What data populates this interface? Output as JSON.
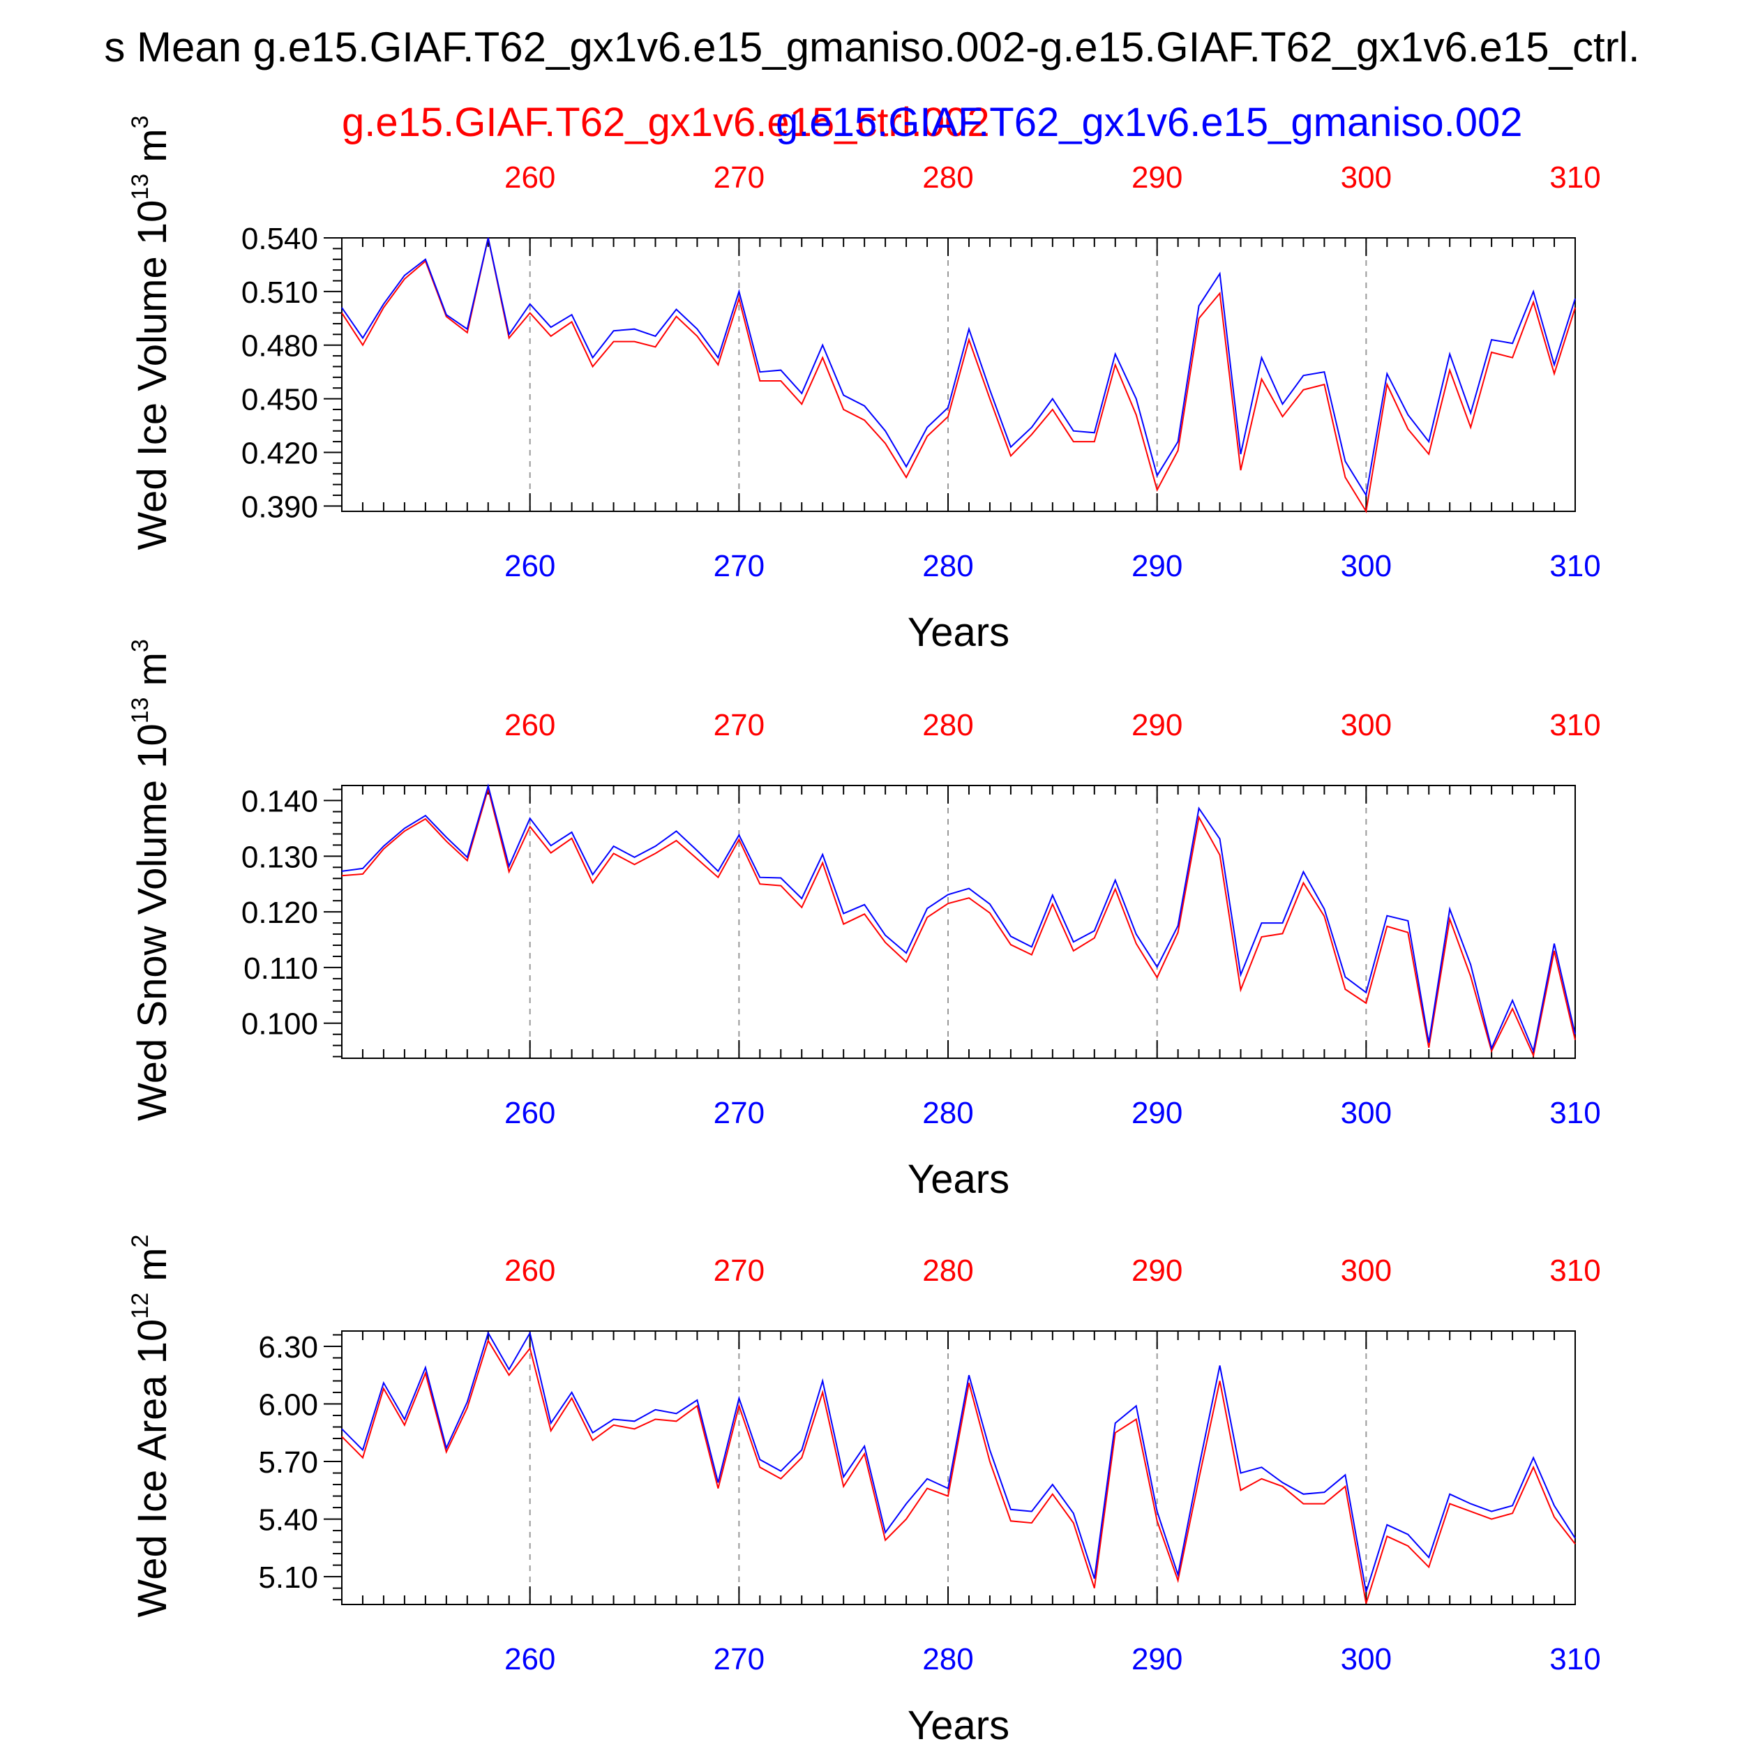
{
  "title": "s Mean g.e15.GIAF.T62_gx1v6.e15_gmaniso.002-g.e15.GIAF.T62_gx1v6.e15_ctrl.",
  "legend": {
    "red_label": "g.e15.GIAF.T62_gx1v6.e15_ctrl.002",
    "blue_label": "g.e15.GIAF.T62_gx1v6.e15_gmaniso.002",
    "red_color": "#ff0000",
    "blue_color": "#0000ff"
  },
  "chart_data": [
    {
      "type": "line",
      "ylabel": "Wed Ice Volume 10",
      "ylabel_sup": "13",
      "ylabel_unit": " m",
      "ylabel_unit_sup": "3",
      "xlabel": "Years",
      "xlim": [
        251,
        310
      ],
      "ylim": [
        0.387,
        0.54
      ],
      "yticks": [
        "0.390",
        "0.420",
        "0.450",
        "0.480",
        "0.510",
        "0.540"
      ],
      "xticks_top": [
        "260",
        "270",
        "280",
        "290",
        "300",
        "310"
      ],
      "xticks_bottom": [
        "260",
        "270",
        "280",
        "290",
        "300",
        "310"
      ],
      "grid_x": [
        260,
        270,
        280,
        290,
        300
      ],
      "x": [
        251,
        252,
        253,
        254,
        255,
        256,
        257,
        258,
        259,
        260,
        261,
        262,
        263,
        264,
        265,
        266,
        267,
        268,
        269,
        270,
        271,
        272,
        273,
        274,
        275,
        276,
        277,
        278,
        279,
        280,
        281,
        282,
        283,
        284,
        285,
        286,
        287,
        288,
        289,
        290,
        291,
        292,
        293,
        294,
        295,
        296,
        297,
        298,
        299,
        300,
        301,
        302,
        303,
        304,
        305,
        306,
        307,
        308,
        309,
        310
      ],
      "series": [
        {
          "name": "g.e15.GIAF.T62_gx1v6.e15_ctrl.002",
          "color": "#ff0000",
          "values": [
            0.498,
            0.48,
            0.501,
            0.517,
            0.527,
            0.496,
            0.487,
            0.54,
            0.484,
            0.498,
            0.485,
            0.493,
            0.468,
            0.482,
            0.482,
            0.479,
            0.496,
            0.485,
            0.469,
            0.506,
            0.46,
            0.46,
            0.447,
            0.473,
            0.444,
            0.438,
            0.425,
            0.406,
            0.429,
            0.44,
            0.483,
            0.45,
            0.418,
            0.43,
            0.444,
            0.426,
            0.426,
            0.469,
            0.441,
            0.399,
            0.421,
            0.495,
            0.509,
            0.41,
            0.461,
            0.44,
            0.455,
            0.458,
            0.406,
            0.387,
            0.458,
            0.433,
            0.419,
            0.466,
            0.434,
            0.476,
            0.473,
            0.504,
            0.464,
            0.501
          ]
        },
        {
          "name": "g.e15.GIAF.T62_gx1v6.e15_gmaniso.002",
          "color": "#0000ff",
          "values": [
            0.501,
            0.484,
            0.503,
            0.519,
            0.528,
            0.497,
            0.489,
            0.54,
            0.486,
            0.503,
            0.49,
            0.497,
            0.473,
            0.488,
            0.489,
            0.485,
            0.5,
            0.489,
            0.473,
            0.51,
            0.465,
            0.466,
            0.453,
            0.48,
            0.452,
            0.446,
            0.432,
            0.412,
            0.434,
            0.445,
            0.489,
            0.455,
            0.423,
            0.434,
            0.45,
            0.432,
            0.431,
            0.475,
            0.45,
            0.407,
            0.426,
            0.502,
            0.52,
            0.419,
            0.473,
            0.447,
            0.463,
            0.465,
            0.415,
            0.396,
            0.464,
            0.441,
            0.426,
            0.475,
            0.442,
            0.483,
            0.481,
            0.51,
            0.469,
            0.506
          ]
        }
      ]
    },
    {
      "type": "line",
      "ylabel": "Wed Snow Volume 10",
      "ylabel_sup": "13",
      "ylabel_unit": " m",
      "ylabel_unit_sup": "3",
      "xlabel": "Years",
      "xlim": [
        251,
        310
      ],
      "ylim": [
        0.0937,
        0.1427
      ],
      "yticks": [
        "0.100",
        "0.110",
        "0.120",
        "0.130",
        "0.140"
      ],
      "xticks_top": [
        "260",
        "270",
        "280",
        "290",
        "300",
        "310"
      ],
      "xticks_bottom": [
        "260",
        "270",
        "280",
        "290",
        "300",
        "310"
      ],
      "grid_x": [
        260,
        270,
        280,
        290,
        300
      ],
      "x": [
        251,
        252,
        253,
        254,
        255,
        256,
        257,
        258,
        259,
        260,
        261,
        262,
        263,
        264,
        265,
        266,
        267,
        268,
        269,
        270,
        271,
        272,
        273,
        274,
        275,
        276,
        277,
        278,
        279,
        280,
        281,
        282,
        283,
        284,
        285,
        286,
        287,
        288,
        289,
        290,
        291,
        292,
        293,
        294,
        295,
        296,
        297,
        298,
        299,
        300,
        301,
        302,
        303,
        304,
        305,
        306,
        307,
        308,
        309,
        310
      ],
      "series": [
        {
          "name": "g.e15.GIAF.T62_gx1v6.e15_ctrl.002",
          "color": "#ff0000",
          "values": [
            0.1265,
            0.1268,
            0.1313,
            0.1345,
            0.1367,
            0.1327,
            0.1292,
            0.1421,
            0.1272,
            0.1353,
            0.1306,
            0.1332,
            0.1252,
            0.1305,
            0.1285,
            0.1305,
            0.1328,
            0.1295,
            0.1262,
            0.133,
            0.125,
            0.1247,
            0.1208,
            0.1288,
            0.1178,
            0.1196,
            0.1145,
            0.111,
            0.119,
            0.1215,
            0.1225,
            0.1198,
            0.1141,
            0.1123,
            0.1214,
            0.113,
            0.1153,
            0.1241,
            0.1143,
            0.1082,
            0.1163,
            0.137,
            0.1302,
            0.106,
            0.1155,
            0.1161,
            0.1252,
            0.1192,
            0.1061,
            0.1036,
            0.1174,
            0.1163,
            0.0956,
            0.1187,
            0.1084,
            0.095,
            0.1026,
            0.0942,
            0.113,
            0.097
          ]
        },
        {
          "name": "g.e15.GIAF.T62_gx1v6.e15_gmaniso.002",
          "color": "#0000ff",
          "values": [
            0.1273,
            0.1278,
            0.1318,
            0.135,
            0.1373,
            0.1334,
            0.1298,
            0.1426,
            0.1282,
            0.1368,
            0.1319,
            0.1343,
            0.1267,
            0.1318,
            0.1298,
            0.1318,
            0.1345,
            0.131,
            0.1273,
            0.1338,
            0.1262,
            0.1261,
            0.1224,
            0.1303,
            0.1197,
            0.1213,
            0.1158,
            0.1126,
            0.1206,
            0.1231,
            0.1242,
            0.1214,
            0.1156,
            0.1137,
            0.123,
            0.1146,
            0.1166,
            0.1257,
            0.116,
            0.1101,
            0.1175,
            0.1386,
            0.1331,
            0.1087,
            0.118,
            0.118,
            0.1272,
            0.1205,
            0.1083,
            0.1055,
            0.1193,
            0.1184,
            0.0965,
            0.1205,
            0.1105,
            0.0955,
            0.1041,
            0.095,
            0.1143,
            0.098
          ]
        }
      ]
    },
    {
      "type": "line",
      "ylabel": "Wed Ice Area 10",
      "ylabel_sup": "12",
      "ylabel_unit": " m",
      "ylabel_unit_sup": "2",
      "xlabel": "Years",
      "xlim": [
        251,
        310
      ],
      "ylim": [
        4.955,
        6.38
      ],
      "yticks": [
        "5.10",
        "5.40",
        "5.70",
        "6.00",
        "6.30"
      ],
      "xticks_top": [
        "260",
        "270",
        "280",
        "290",
        "300",
        "310"
      ],
      "xticks_bottom": [
        "260",
        "270",
        "280",
        "290",
        "300",
        "310"
      ],
      "grid_x": [
        260,
        270,
        280,
        290,
        300
      ],
      "x": [
        251,
        252,
        253,
        254,
        255,
        256,
        257,
        258,
        259,
        260,
        261,
        262,
        263,
        264,
        265,
        266,
        267,
        268,
        269,
        270,
        271,
        272,
        273,
        274,
        275,
        276,
        277,
        278,
        279,
        280,
        281,
        282,
        283,
        284,
        285,
        286,
        287,
        288,
        289,
        290,
        291,
        292,
        293,
        294,
        295,
        296,
        297,
        298,
        299,
        300,
        301,
        302,
        303,
        304,
        305,
        306,
        307,
        308,
        309,
        310
      ],
      "series": [
        {
          "name": "g.e15.GIAF.T62_gx1v6.e15_ctrl.002",
          "color": "#ff0000",
          "values": [
            5.83,
            5.72,
            6.08,
            5.89,
            6.16,
            5.75,
            5.98,
            6.33,
            6.15,
            6.29,
            5.86,
            6.03,
            5.81,
            5.89,
            5.87,
            5.92,
            5.91,
            5.99,
            5.56,
            5.99,
            5.67,
            5.61,
            5.72,
            6.06,
            5.57,
            5.74,
            5.29,
            5.4,
            5.56,
            5.52,
            6.11,
            5.7,
            5.39,
            5.38,
            5.53,
            5.38,
            5.04,
            5.85,
            5.92,
            5.39,
            5.08,
            5.61,
            6.12,
            5.55,
            5.61,
            5.57,
            5.48,
            5.48,
            5.57,
            4.96,
            5.31,
            5.26,
            5.15,
            5.48,
            5.44,
            5.4,
            5.43,
            5.67,
            5.41,
            5.27
          ]
        },
        {
          "name": "g.e15.GIAF.T62_gx1v6.e15_gmaniso.002",
          "color": "#0000ff",
          "values": [
            5.87,
            5.76,
            6.11,
            5.92,
            6.19,
            5.77,
            6.01,
            6.37,
            6.18,
            6.37,
            5.9,
            6.06,
            5.85,
            5.92,
            5.91,
            5.97,
            5.95,
            6.02,
            5.59,
            6.03,
            5.71,
            5.65,
            5.76,
            6.12,
            5.62,
            5.78,
            5.33,
            5.48,
            5.61,
            5.56,
            6.15,
            5.76,
            5.45,
            5.44,
            5.58,
            5.43,
            5.09,
            5.9,
            5.99,
            5.44,
            5.11,
            5.67,
            6.2,
            5.64,
            5.67,
            5.59,
            5.53,
            5.54,
            5.63,
            5.02,
            5.37,
            5.32,
            5.2,
            5.53,
            5.48,
            5.44,
            5.47,
            5.72,
            5.47,
            5.3
          ]
        }
      ]
    }
  ]
}
